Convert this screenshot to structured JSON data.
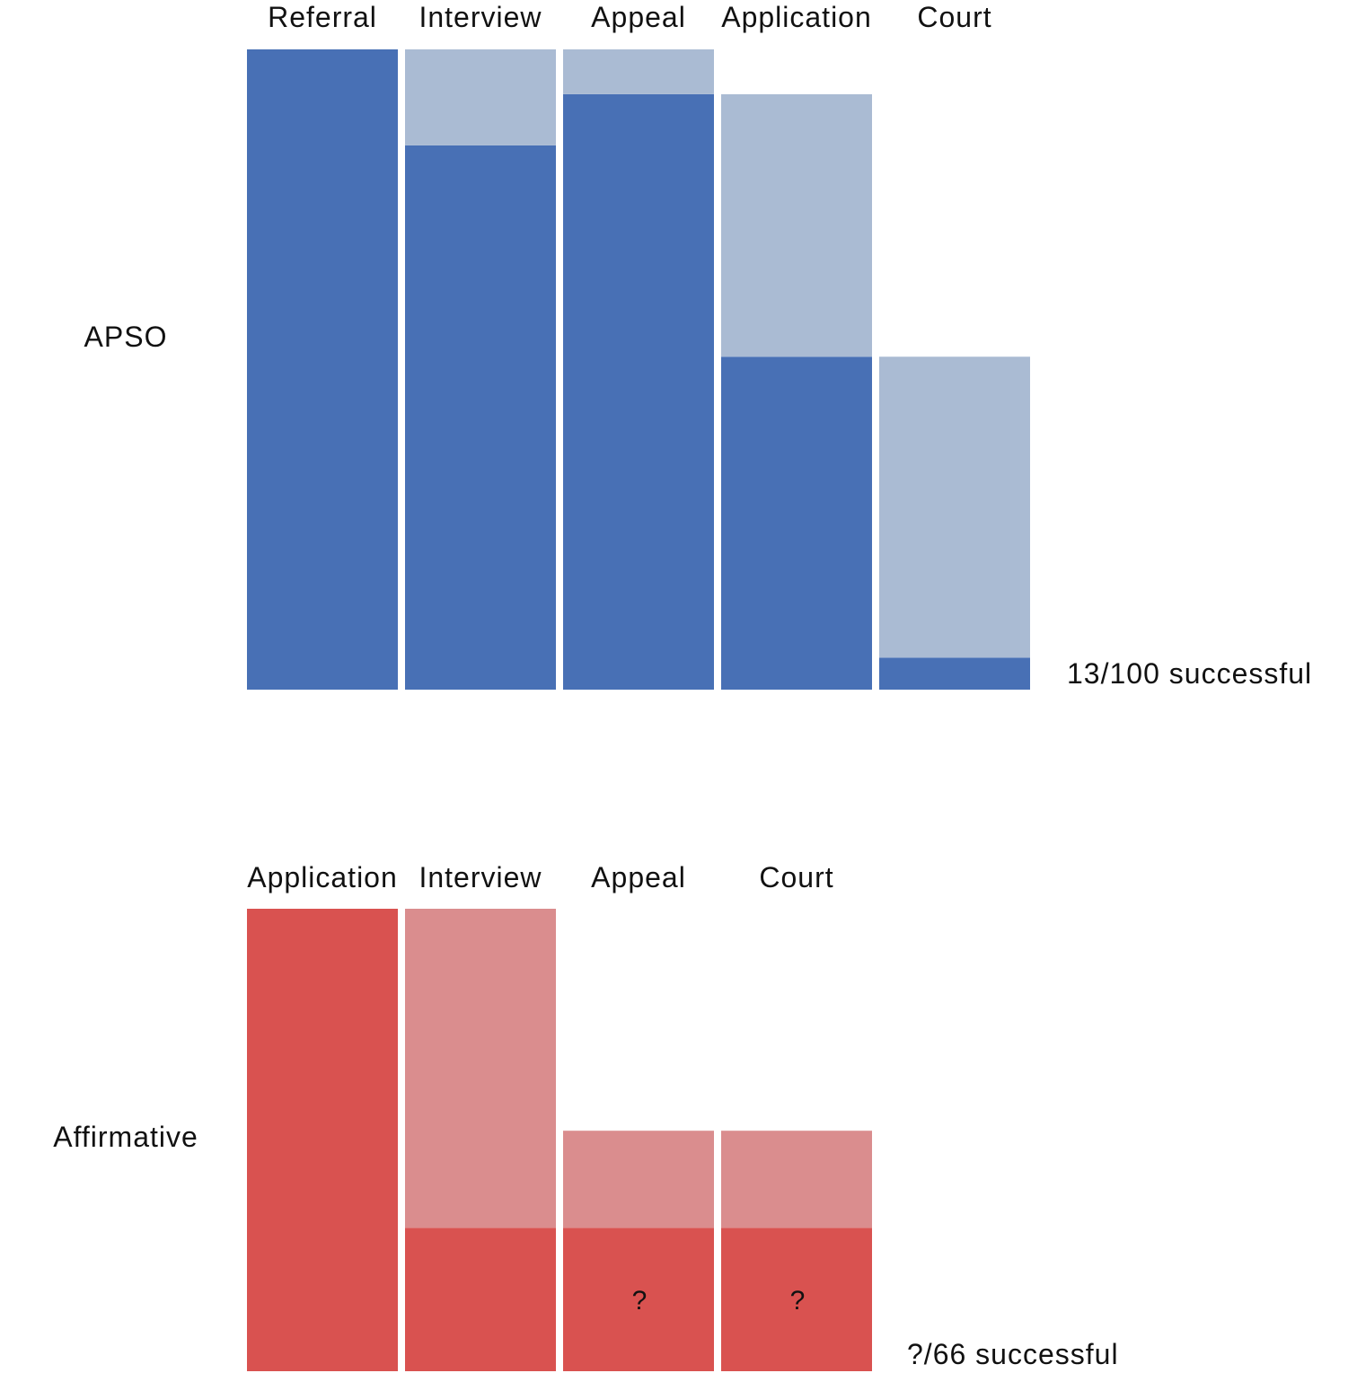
{
  "chart_data": [
    {
      "type": "bar",
      "group_label": "APSO",
      "summary": "13/100 successful",
      "categories": [
        "Referral",
        "Interview",
        "Appeal",
        "Application",
        "Court"
      ],
      "series": [
        {
          "values": [
            100,
            85,
            93,
            52,
            5
          ],
          "color": "#4870b5"
        },
        {
          "values": [
            0,
            15,
            7,
            41,
            47
          ],
          "color": "#aabbd3"
        }
      ],
      "ylim": [
        0,
        100
      ],
      "grid": false
    },
    {
      "type": "bar",
      "group_label": "Affirmative",
      "summary": "?/66 successful",
      "categories": [
        "Application",
        "Interview",
        "Appeal",
        "Court"
      ],
      "series": [
        {
          "values": [
            100,
            31,
            31,
            31
          ],
          "color": "#d95250"
        },
        {
          "values": [
            0,
            69,
            21,
            21
          ],
          "color": "#da8d8e"
        }
      ],
      "bar_labels": [
        "",
        "",
        "?",
        "?"
      ],
      "ylim": [
        0,
        100
      ],
      "grid": false
    }
  ]
}
